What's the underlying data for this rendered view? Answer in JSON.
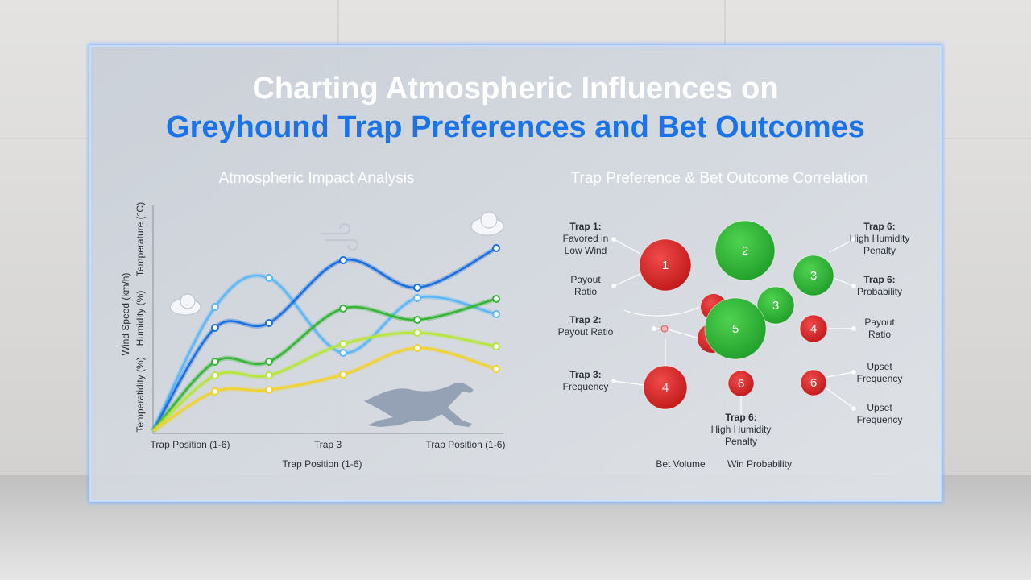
{
  "header": {
    "title_line1": "Charting Atmospheric Influences on",
    "title_line2": "Greyhound Trap Preferences and Bet Outcomes"
  },
  "left_panel": {
    "title": "Atmospheric Impact Analysis",
    "y_labels": [
      "Wind Speed (km/h)",
      "Humidity (%)",
      "Temperature (°C)",
      "Temperatidity (%)"
    ],
    "x_labels": [
      "Trap Position (1-6)",
      "Trap 3",
      "Trap Position (1-6)"
    ],
    "x_title": "Trap Position (1-6)"
  },
  "right_panel": {
    "title": "Trap Preference & Bet Outcome Correlation",
    "bubbles": [
      "1",
      "2",
      "3",
      "3",
      "5",
      "4",
      "4",
      "6",
      "6"
    ],
    "annotations": [
      [
        "Trap 1:",
        "Favored in",
        "Low Wind"
      ],
      [
        "Payout",
        "Ratio"
      ],
      [
        "Trap 2:",
        "Payout Ratio"
      ],
      [
        "Trap 3:",
        "Frequency"
      ],
      [
        "Trap 6:",
        "High Humidity",
        "Penalty"
      ],
      [
        "Trap 6:",
        "Probability"
      ],
      [
        "Payout",
        "Ratio"
      ],
      [
        "Upset",
        "Frequency"
      ],
      [
        "Upset",
        "Frequency"
      ],
      [
        "Trap 6:",
        "High Humidity",
        "Penalty"
      ]
    ],
    "footer_labels": [
      "Bet Volume",
      "Win Probability"
    ]
  }
}
